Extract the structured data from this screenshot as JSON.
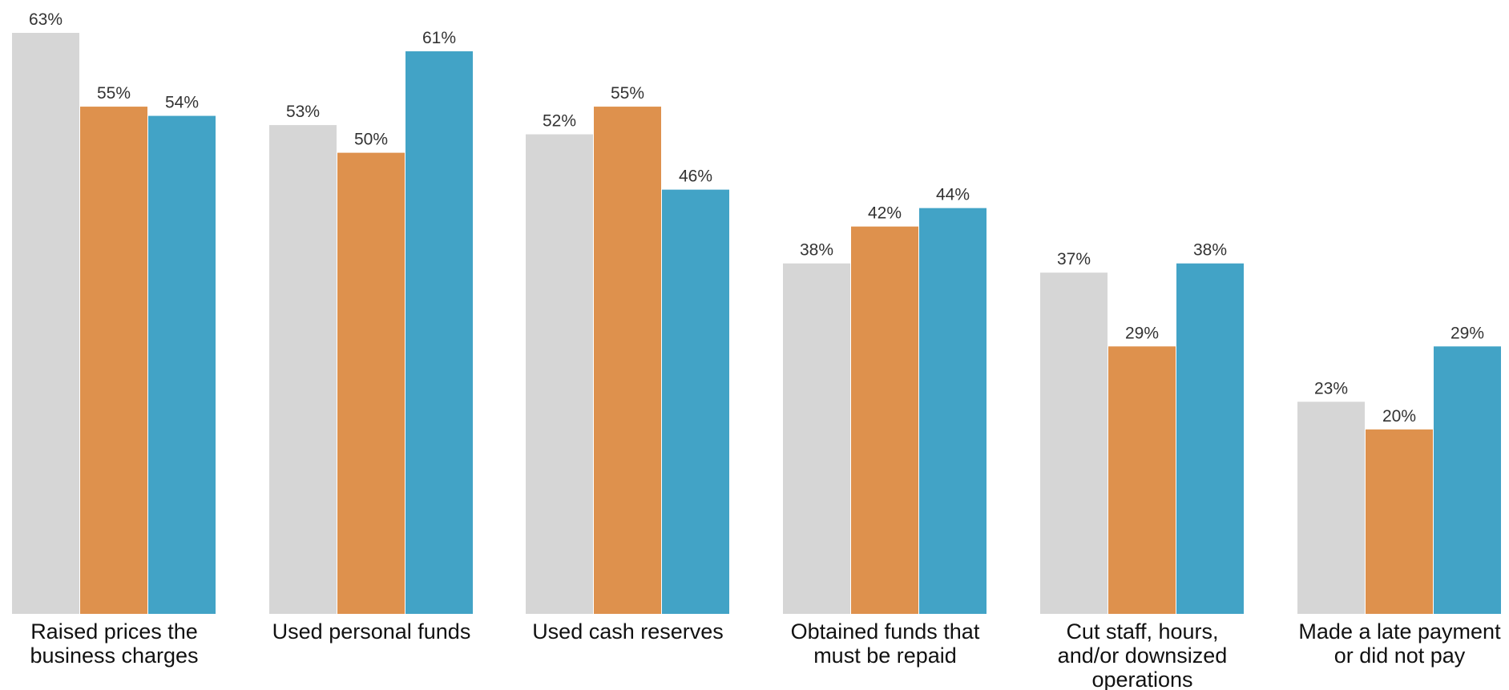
{
  "chart_data": {
    "type": "bar",
    "categories": [
      [
        "Raised prices the",
        "business charges"
      ],
      [
        "Used personal funds"
      ],
      [
        "Used cash reserves"
      ],
      [
        "Obtained funds that",
        "must be repaid"
      ],
      [
        "Cut staff, hours,",
        "and/or downsized",
        "operations"
      ],
      [
        "Made a late payment",
        "or did not pay"
      ]
    ],
    "series": [
      {
        "color": "#d6d6d6",
        "values": [
          63,
          53,
          52,
          38,
          37,
          23
        ]
      },
      {
        "color": "#de914d",
        "values": [
          55,
          50,
          55,
          42,
          29,
          20
        ]
      },
      {
        "color": "#42a3c6",
        "values": [
          54,
          61,
          46,
          44,
          38,
          29
        ]
      }
    ],
    "value_suffix": "%",
    "ylim": [
      0,
      63
    ],
    "grid": false,
    "legend": "none",
    "title": "",
    "xlabel": "",
    "ylabel": ""
  }
}
